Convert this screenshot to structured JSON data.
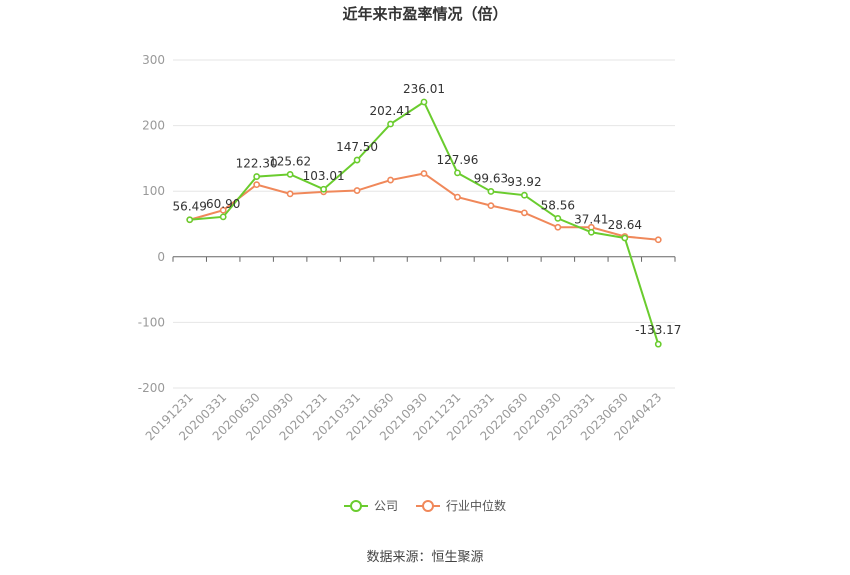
{
  "chart_data": {
    "type": "line",
    "title": "近年来市盈率情况（倍）",
    "categories": [
      "20191231",
      "20200331",
      "20200630",
      "20200930",
      "20201231",
      "20210331",
      "20210630",
      "20210930",
      "20211231",
      "20220331",
      "20220630",
      "20220930",
      "20230331",
      "20230630",
      "20240423"
    ],
    "series": [
      {
        "name": "公司",
        "color": "#6acc2e",
        "values": [
          56.49,
          60.9,
          122.3,
          125.62,
          103.01,
          147.5,
          202.41,
          236.01,
          127.96,
          99.63,
          93.92,
          58.56,
          37.41,
          28.64,
          -133.17
        ],
        "labels": [
          "56.49",
          "60.90",
          "122.30",
          "125.62",
          "103.01",
          "147.50",
          "202.41",
          "236.01",
          "127.96",
          "99.63",
          "93.92",
          "58.56",
          "37.41",
          "28.64",
          "-133.17"
        ]
      },
      {
        "name": "行业中位数",
        "color": "#f0885a",
        "values": [
          56.5,
          71,
          110,
          96,
          99,
          101,
          117,
          127,
          91,
          78,
          67,
          45,
          45,
          31,
          26
        ]
      }
    ],
    "y_ticks": [
      "300",
      "200",
      "100",
      "0",
      "-100",
      "-200"
    ],
    "ylim": [
      -200,
      300
    ],
    "grid": true,
    "legend_position": "bottom"
  },
  "source": "数据来源：恒生聚源"
}
